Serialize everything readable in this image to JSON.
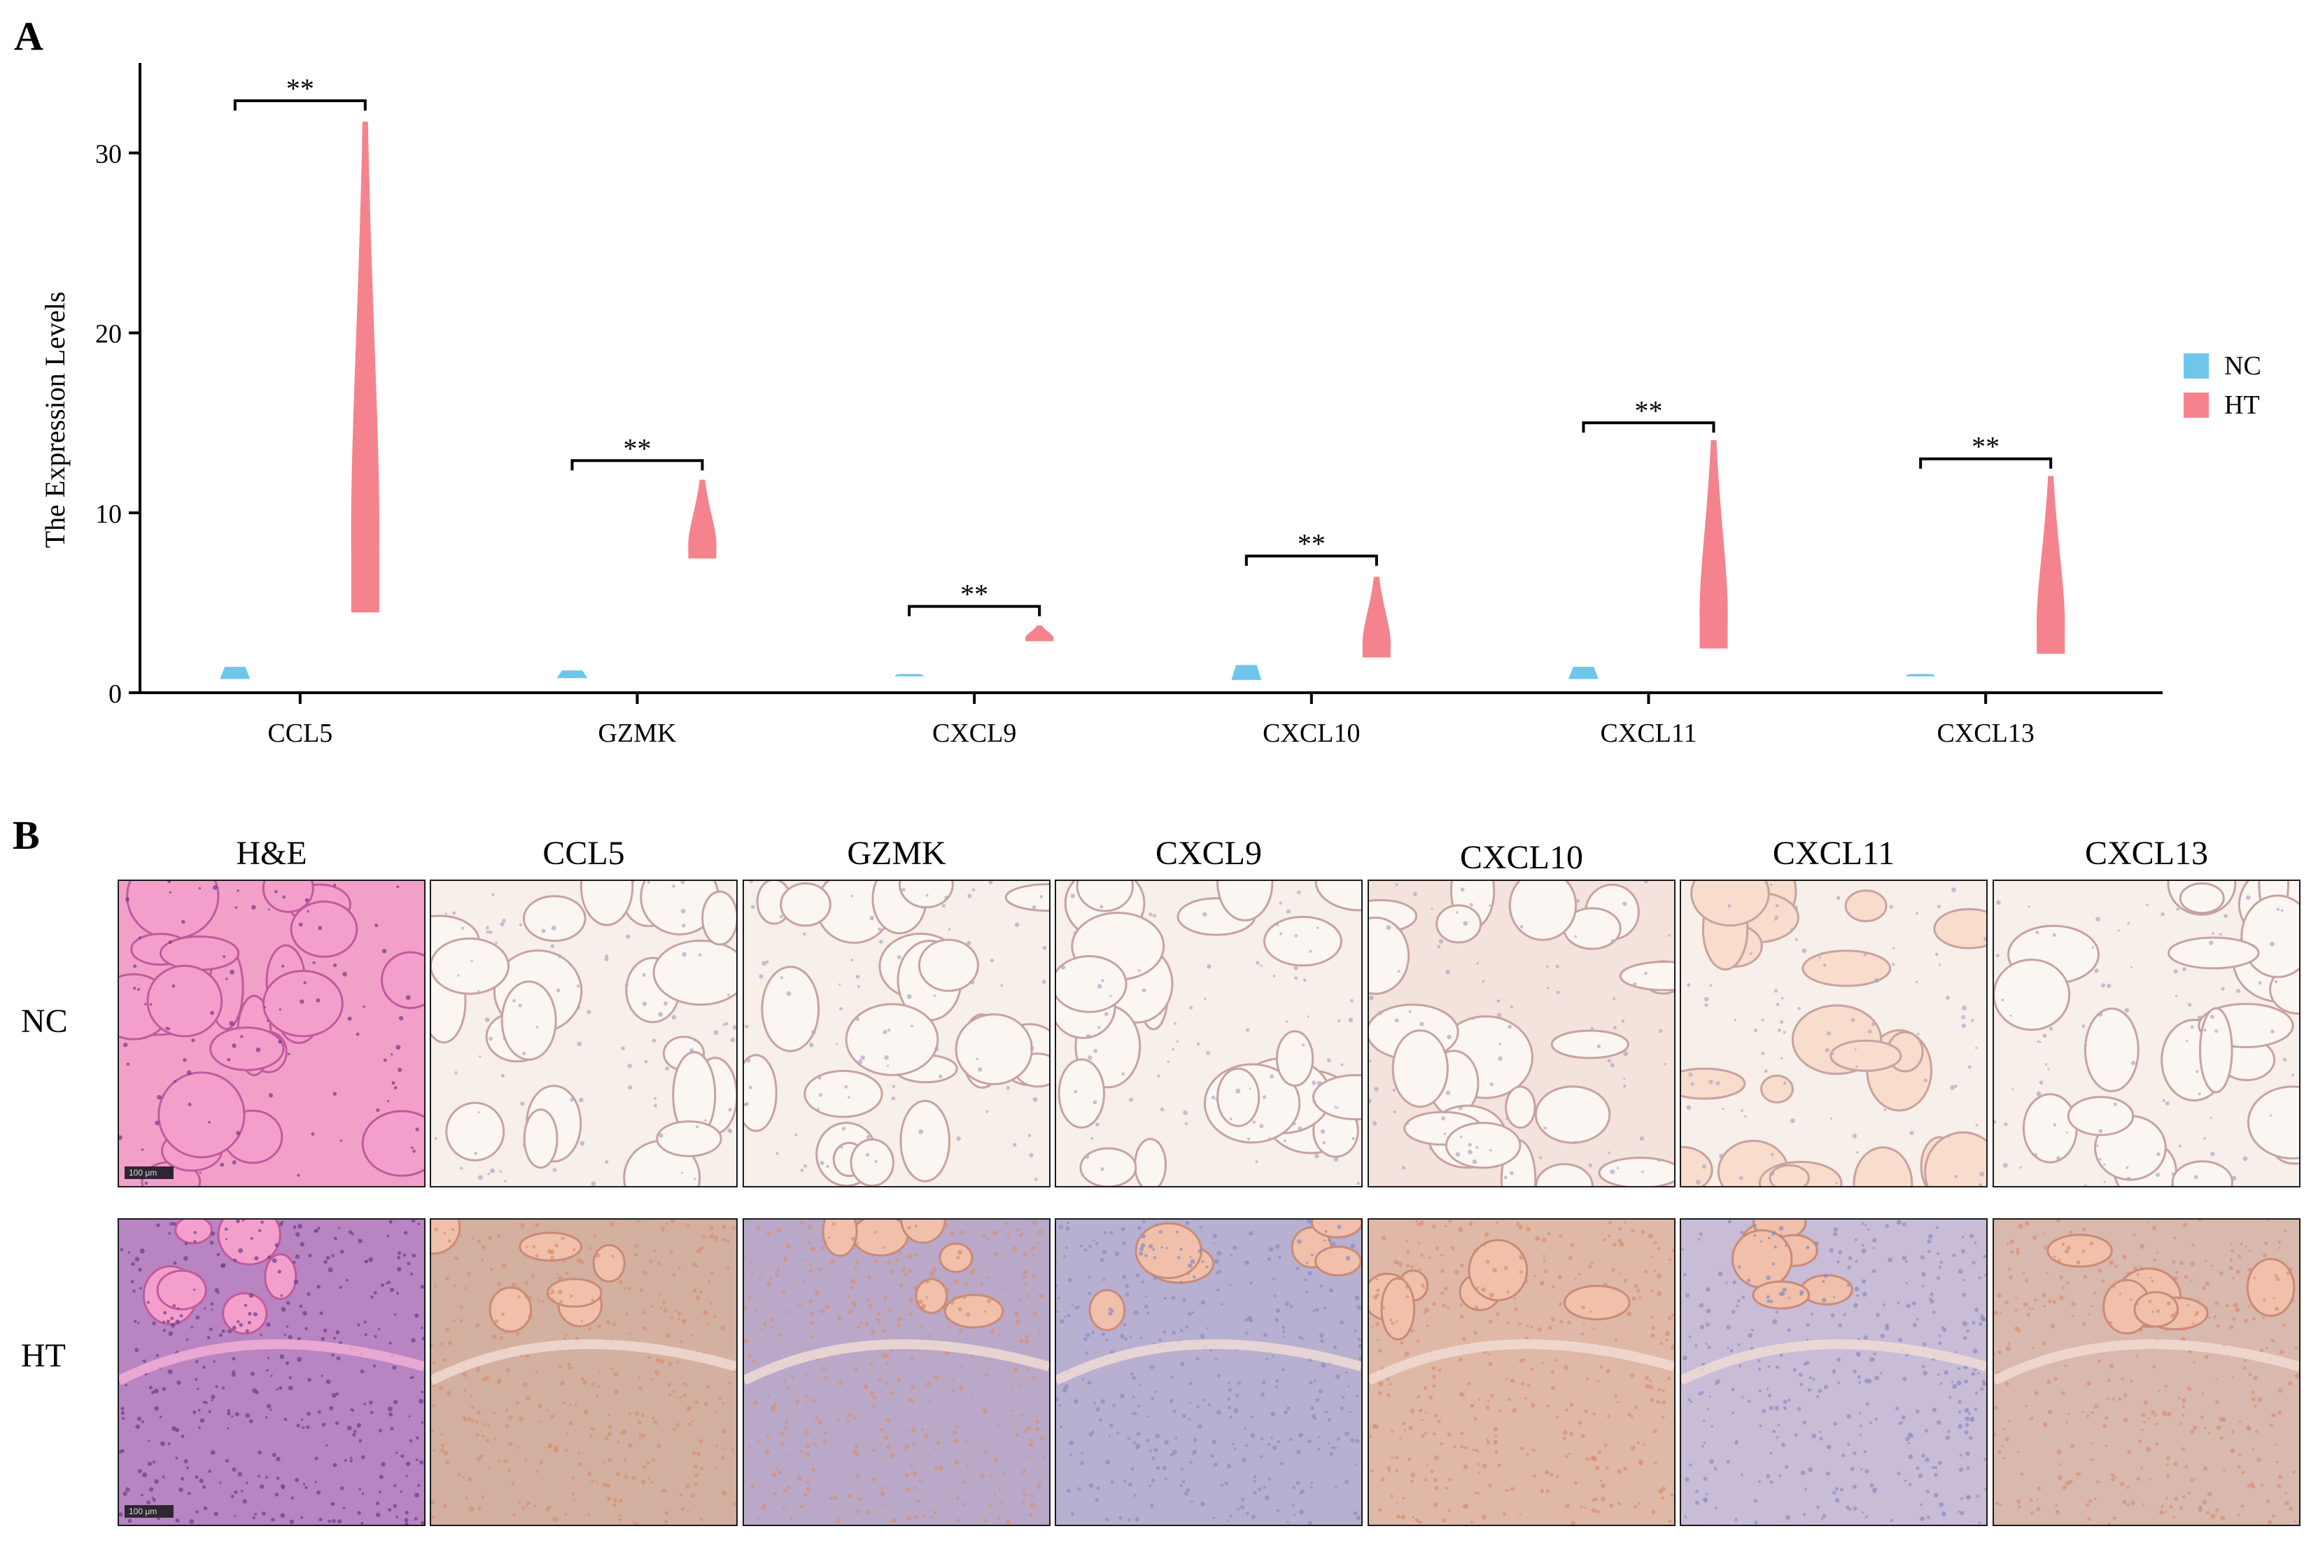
{
  "panel_a": {
    "letter": "A"
  },
  "panel_b": {
    "letter": "B",
    "columns": [
      "H&E",
      "CCL5",
      "GZMK",
      "CXCL9",
      "CXCL10",
      "CXCL11",
      "CXCL13"
    ],
    "rows": [
      "NC",
      "HT"
    ],
    "scale_bar": "100 μm",
    "stain_colors": {
      "he_pink": "#f2a0c8",
      "he_nuclei": "#6a3c8c",
      "ihc_background": "#f7efe9",
      "ihc_brown": "#d98e6e",
      "ihc_blue": "#8a8cc2"
    }
  },
  "chart_data": {
    "type": "violin",
    "ylabel": "The Expression Levels",
    "ylim": [
      0,
      35
    ],
    "yticks": [
      0,
      10,
      20,
      30
    ],
    "categories": [
      "CCL5",
      "GZMK",
      "CXCL9",
      "CXCL10",
      "CXCL11",
      "CXCL13"
    ],
    "legend": {
      "position": "right",
      "entries": [
        {
          "name": "NC",
          "color": "#6ec6ea"
        },
        {
          "name": "HT",
          "color": "#f5838d"
        }
      ]
    },
    "series": [
      {
        "name": "NC",
        "color": "#6ec6ea",
        "ranges": [
          [
            0.8,
            1.4
          ],
          [
            0.85,
            1.2
          ],
          [
            0.95,
            1.0
          ],
          [
            0.75,
            1.5
          ],
          [
            0.8,
            1.4
          ],
          [
            0.95,
            1.0
          ]
        ]
      },
      {
        "name": "HT",
        "color": "#f5838d",
        "ranges": [
          [
            4.5,
            31.7
          ],
          [
            7.5,
            11.8
          ],
          [
            2.9,
            3.7
          ],
          [
            2.0,
            6.4
          ],
          [
            2.5,
            14.0
          ],
          [
            2.2,
            12.0
          ]
        ]
      }
    ],
    "significance": [
      {
        "category": "CCL5",
        "label": "**",
        "y": 32.9
      },
      {
        "category": "GZMK",
        "label": "**",
        "y": 12.9
      },
      {
        "category": "CXCL9",
        "label": "**",
        "y": 4.8
      },
      {
        "category": "CXCL10",
        "label": "**",
        "y": 7.6
      },
      {
        "category": "CXCL11",
        "label": "**",
        "y": 15.0
      },
      {
        "category": "CXCL13",
        "label": "**",
        "y": 13.0
      }
    ]
  }
}
